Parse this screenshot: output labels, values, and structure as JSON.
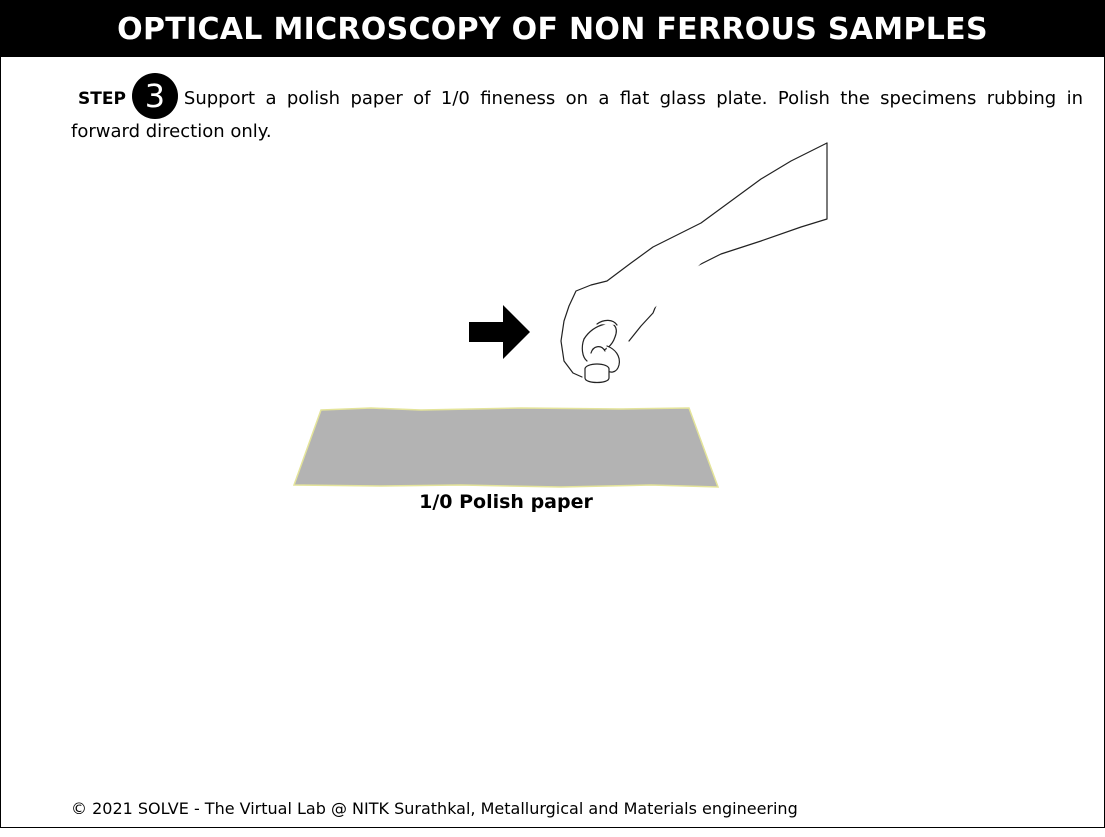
{
  "header": {
    "title": "OPTICAL MICROSCOPY OF NON FERROUS SAMPLES"
  },
  "step": {
    "label": "STEP",
    "number": "3",
    "instruction": "Support a polish paper of 1/0 fineness on a flat glass plate. Polish the specimens rubbing in forward direction only."
  },
  "illustration": {
    "direction_icon": "right-arrow-icon",
    "paper_caption": "1/0 Polish paper",
    "paper_color": "#b3b3b3",
    "paper_edge_color": "#e4e49a"
  },
  "footer": {
    "copyright": "© 2021 SOLVE - The Virtual Lab @ NITK Surathkal, Metallurgical and Materials engineering"
  }
}
